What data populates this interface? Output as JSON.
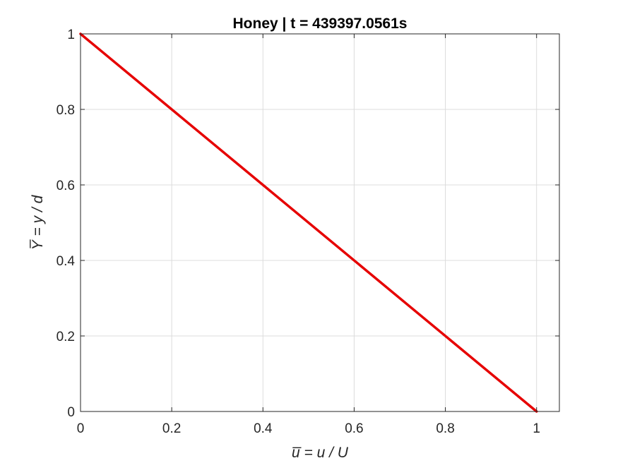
{
  "chart_data": {
    "type": "line",
    "title": "Honey | t = 439397.0561s",
    "xlabel": "u̅ = u / U",
    "ylabel": "Y̅ = y / d",
    "xlim": [
      0,
      1.05
    ],
    "ylim": [
      0,
      1
    ],
    "x_ticks": [
      0,
      0.2,
      0.4,
      0.6,
      0.8,
      1
    ],
    "x_tick_labels": [
      "0",
      "0.2",
      "0.4",
      "0.6",
      "0.8",
      "1"
    ],
    "y_ticks": [
      0,
      0.2,
      0.4,
      0.6,
      0.8,
      1
    ],
    "y_tick_labels": [
      "0",
      "0.2",
      "0.4",
      "0.6",
      "0.8",
      "1"
    ],
    "grid": true,
    "series": [
      {
        "color": "#e60000",
        "x": [
          1,
          0
        ],
        "y": [
          0,
          1
        ]
      }
    ]
  }
}
